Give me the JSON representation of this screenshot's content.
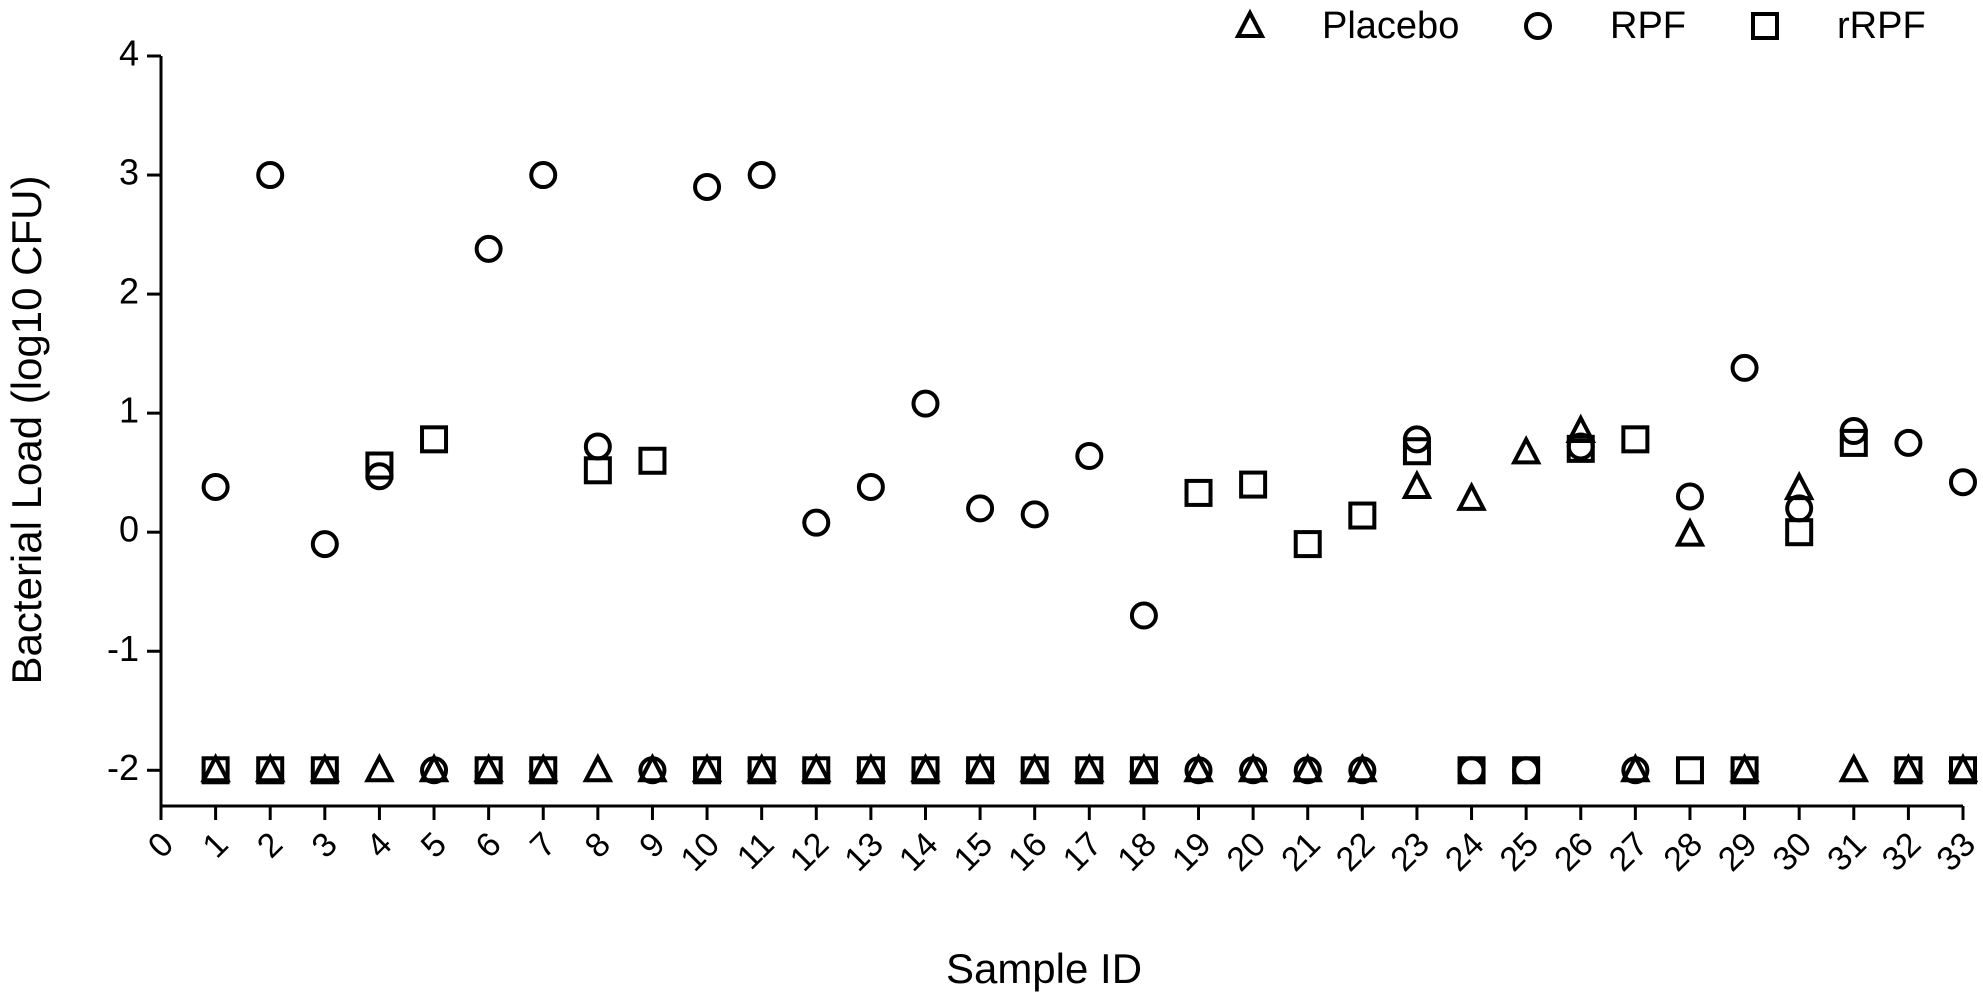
{
  "chart_data": {
    "type": "scatter",
    "x_label": "Sample ID",
    "y_label": "Bacterial Load  (log10 CFU)",
    "x": [
      1,
      2,
      3,
      4,
      5,
      6,
      7,
      8,
      9,
      10,
      11,
      12,
      13,
      14,
      15,
      16,
      17,
      18,
      19,
      20,
      21,
      22,
      23,
      24,
      25,
      26,
      27,
      28,
      29,
      30,
      31,
      32,
      33
    ],
    "xlim": [
      0,
      33
    ],
    "xticks": [
      0,
      1,
      2,
      3,
      4,
      5,
      6,
      7,
      8,
      9,
      10,
      11,
      12,
      13,
      14,
      15,
      16,
      17,
      18,
      19,
      20,
      21,
      22,
      23,
      24,
      25,
      26,
      27,
      28,
      29,
      30,
      31,
      32,
      33
    ],
    "ylim": [
      -2.3,
      4
    ],
    "yticks": [
      -2,
      -1,
      0,
      1,
      2,
      3,
      4
    ],
    "legend_position": "top-right",
    "series": [
      {
        "name": "Placebo",
        "marker": "triangle",
        "color": "#000000",
        "values": [
          -2,
          -2,
          -2,
          -2,
          -2,
          -2,
          -2,
          -2,
          -2,
          -2,
          -2,
          -2,
          -2,
          -2,
          -2,
          -2,
          -2,
          -2,
          -2,
          -2,
          -2,
          -2,
          0.38,
          0.28,
          0.67,
          0.85,
          -2,
          -0.02,
          -2,
          0.37,
          -2,
          -2,
          -2
        ]
      },
      {
        "name": "RPF",
        "marker": "circle",
        "color": "#000000",
        "values": [
          0.38,
          3.0,
          -0.1,
          0.47,
          -2,
          2.38,
          3.0,
          0.72,
          -2,
          2.9,
          3.0,
          0.08,
          0.38,
          1.08,
          0.2,
          0.15,
          0.64,
          -0.7,
          -2,
          -2,
          -2,
          -2,
          0.78,
          -2,
          -2,
          0.72,
          -2,
          0.3,
          1.38,
          0.2,
          0.85,
          0.75,
          0.42
        ]
      },
      {
        "name": "rRPF",
        "marker": "square",
        "color": "#000000",
        "values": [
          -2,
          -2,
          -2,
          0.56,
          0.78,
          -2,
          -2,
          0.52,
          0.6,
          -2,
          -2,
          -2,
          -2,
          -2,
          -2,
          -2,
          -2,
          -2,
          0.33,
          0.4,
          -0.1,
          0.14,
          0.68,
          -2,
          -2,
          0.7,
          0.78,
          -2,
          -2,
          0,
          0.75,
          -2,
          -2
        ]
      }
    ]
  }
}
